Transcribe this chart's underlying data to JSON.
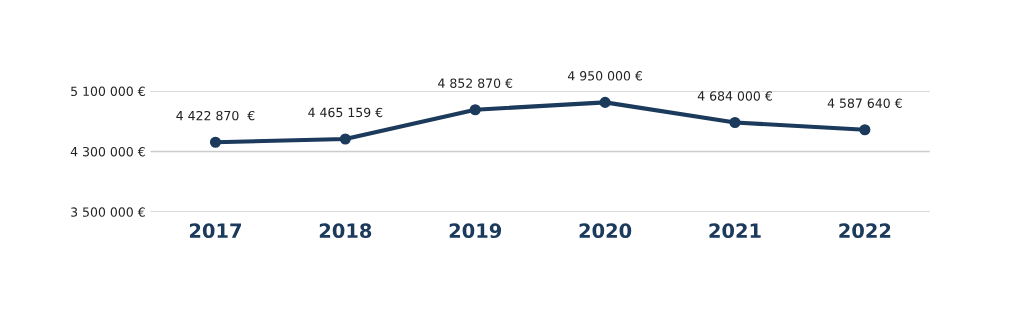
{
  "chart_data": {
    "type": "line",
    "categories": [
      "2017",
      "2018",
      "2019",
      "2020",
      "2021",
      "2022"
    ],
    "series": [
      {
        "color": "#1b3a5c",
        "values": [
          4422870,
          4465159,
          4852870,
          4950000,
          4684000,
          4587640
        ],
        "value_labels": [
          "4 422 870  €",
          "4 465 159 €",
          "4 852 870 €",
          "4 950 000 €",
          "4 684 000 €",
          "4 587 640 €"
        ]
      }
    ],
    "ylim": [
      3500000,
      5100000
    ],
    "yticks": [
      {
        "value": 3500000,
        "label": "3 500 000 €"
      },
      {
        "value": 4300000,
        "label": "4 300 000 €"
      },
      {
        "value": 5100000,
        "label": "5 100 000 €"
      }
    ],
    "grid": "y",
    "marker": "circle",
    "line_style": "solid"
  }
}
